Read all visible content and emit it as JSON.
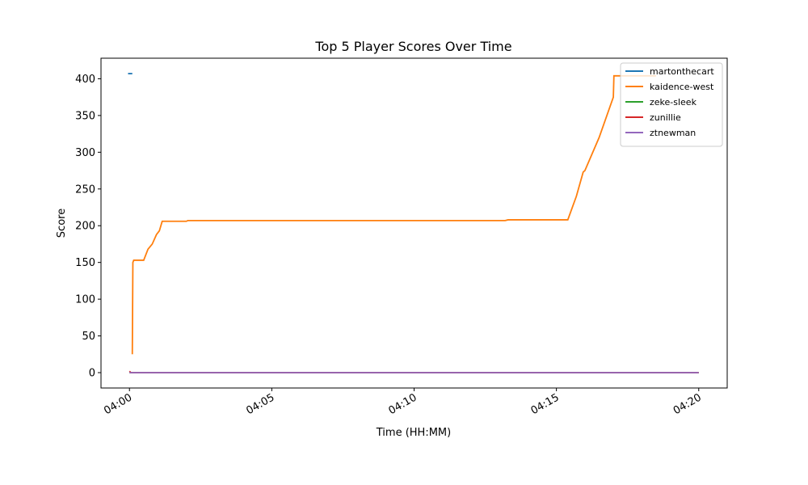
{
  "chart_data": {
    "type": "line",
    "title": "Top 5 Player Scores Over Time",
    "x_label": "Time (HH:MM)",
    "y_label": "Score",
    "xlim": [
      239.0,
      261.0
    ],
    "ylim": [
      -20.9,
      428
    ],
    "xticks": [
      {
        "value": 240,
        "label": "04:00"
      },
      {
        "value": 245,
        "label": "04:05"
      },
      {
        "value": 250,
        "label": "04:10"
      },
      {
        "value": 255,
        "label": "04:15"
      },
      {
        "value": 260,
        "label": "04:20"
      }
    ],
    "yticks": [
      0,
      50,
      100,
      150,
      200,
      250,
      300,
      350,
      400
    ],
    "grid": false,
    "legend": "upper right",
    "series": [
      {
        "name": "martonthecart",
        "color": "#1f77b4",
        "x": [
          239.95,
          240.1
        ],
        "values": [
          407,
          407
        ]
      },
      {
        "name": "kaidence-west",
        "color": "#ff7f0e",
        "x": [
          240.1,
          240.12,
          240.15,
          240.5,
          240.65,
          240.8,
          240.95,
          241.05,
          241.15,
          242.0,
          242.05,
          253.2,
          253.3,
          255.4,
          255.7,
          255.94,
          256.0,
          256.5,
          257.0,
          257.02,
          258.5
        ],
        "values": [
          25,
          150,
          153,
          153,
          168,
          175,
          188,
          193,
          206,
          206,
          207,
          207,
          208,
          208,
          240,
          273,
          275,
          320,
          375,
          404,
          404
        ]
      },
      {
        "name": "zeke-sleek",
        "color": "#2ca02c",
        "x": [
          240,
          240.1,
          260
        ],
        "values": [
          0,
          0,
          0
        ]
      },
      {
        "name": "zunillie",
        "color": "#d62728",
        "x": [
          240,
          240.05,
          240.1,
          260
        ],
        "values": [
          2,
          0,
          0,
          0
        ]
      },
      {
        "name": "ztnewman",
        "color": "#9467bd",
        "x": [
          240,
          260
        ],
        "values": [
          0,
          0
        ]
      }
    ]
  }
}
